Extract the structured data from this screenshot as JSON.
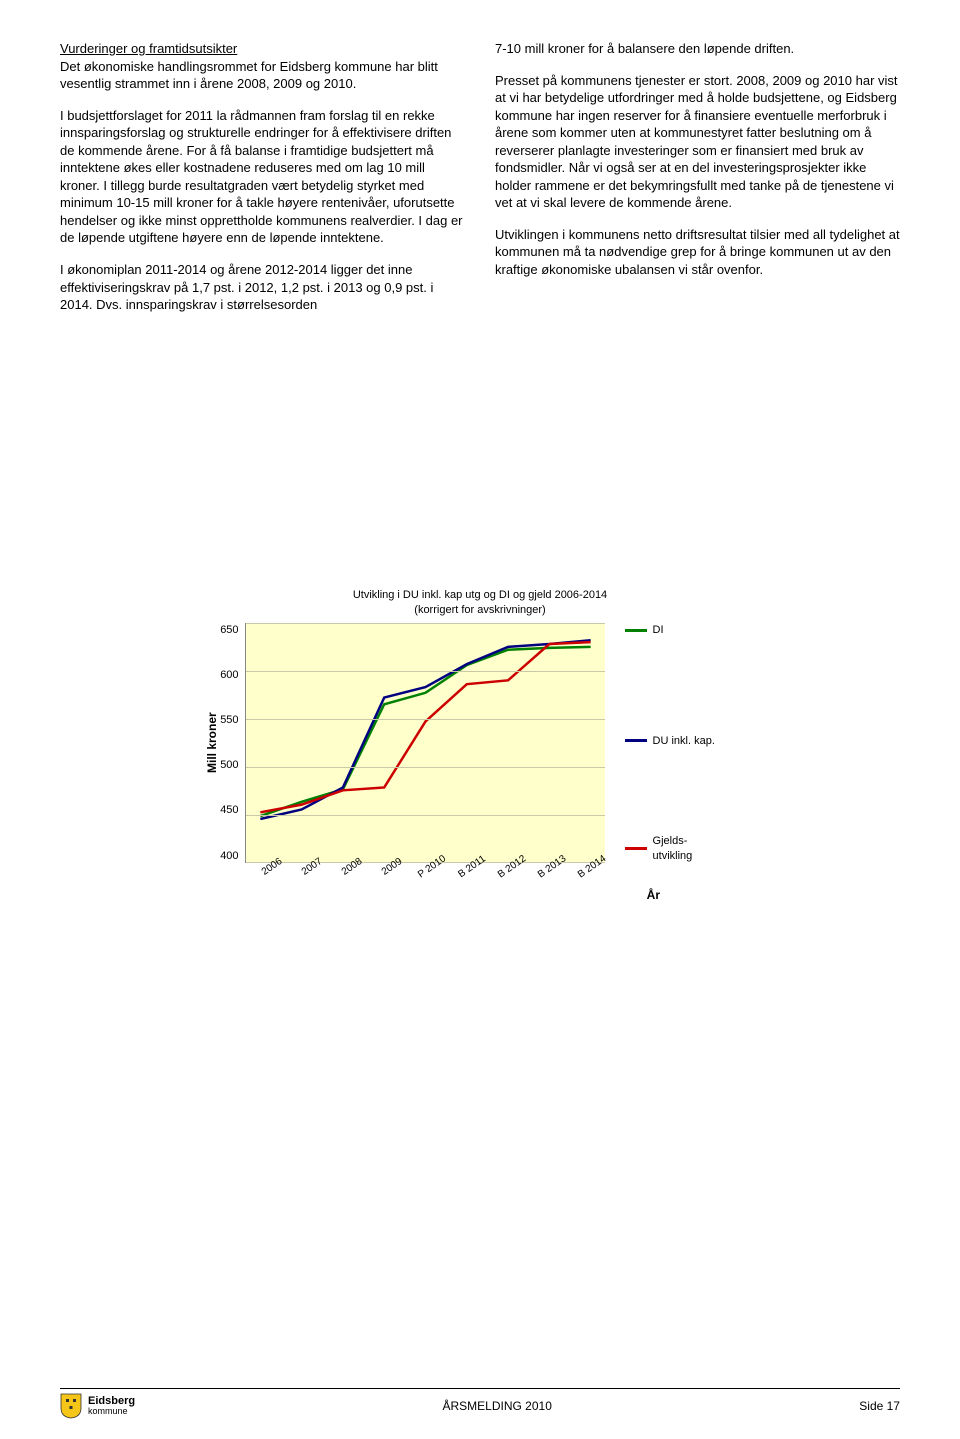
{
  "leftColumn": {
    "heading": "Vurderinger og framtidsutsikter",
    "p1": "Det økonomiske handlingsrommet for Eidsberg kommune har blitt vesentlig strammet inn i årene 2008, 2009 og 2010.",
    "p2": "I budsjettforslaget for 2011 la rådmannen fram forslag til en rekke innsparingsforslag og strukturelle endringer for å effektivisere driften de kommende årene. For å få balanse i framtidige budsjettert må inntektene økes eller kostnadene reduseres med om lag 10 mill kroner. I tillegg burde resultatgraden vært betydelig styrket med minimum 10-15 mill kroner for å takle høyere rentenivåer, uforutsette hendelser og ikke minst opprettholde kommunens realverdier. I dag er de løpende utgiftene høyere enn de løpende inntektene.",
    "p3": "I økonomiplan 2011-2014 og årene 2012-2014 ligger det inne effektiviseringskrav på 1,7 pst. i 2012, 1,2 pst. i 2013 og 0,9 pst. i 2014. Dvs. innsparingskrav i størrelsesorden"
  },
  "rightColumn": {
    "p1": "7-10 mill kroner for å balansere den løpende driften.",
    "p2": "Presset på kommunens tjenester er stort. 2008, 2009 og 2010 har vist at vi har betydelige utfordringer med å holde budsjettene, og Eidsberg kommune har ingen reserver for å finansiere eventuelle merforbruk i årene som kommer uten at kommunestyret fatter beslutning om å reverserer planlagte investeringer som er finansiert med bruk av fondsmidler. Når vi også ser at en del investeringsprosjekter ikke holder rammene er det bekymringsfullt med tanke på de tjenestene vi vet at vi skal levere de kommende årene.",
    "p3": "Utviklingen i kommunens netto driftsresultat tilsier med all tydelighet at kommunen må ta nødvendige grep for å bringe kommunen ut av den kraftige økonomiske ubalansen vi står ovenfor."
  },
  "chart": {
    "title_l1": "Utvikling i DU inkl. kap utg og DI og gjeld 2006-2014",
    "title_l2": "(korrigert for avskrivninger)",
    "ylabel": "Mill kroner",
    "xlabel": "År",
    "ymin": 400,
    "ymax": 650,
    "ytick_step": 50,
    "yticks": [
      "650",
      "600",
      "550",
      "500",
      "450",
      "400"
    ],
    "xticks": [
      "2006",
      "2007",
      "2008",
      "2009",
      "P 2010",
      "B 2011",
      "B 2012",
      "B 2013",
      "B 2014"
    ],
    "background": "#ffffcc",
    "grid_color": "#c9c9a8",
    "series": [
      {
        "name": "DI",
        "color": "#008000",
        "values": [
          448,
          463,
          476,
          565,
          577,
          606,
          622,
          624,
          625
        ]
      },
      {
        "name": "DU inkl. kap.",
        "color": "#000080",
        "values": [
          445,
          455,
          478,
          572,
          583,
          607,
          625,
          628,
          632
        ]
      },
      {
        "name": "Gjelds-utvikling",
        "color": "#cc0000",
        "values": [
          452,
          460,
          475,
          478,
          547,
          586,
          590,
          628,
          630
        ]
      }
    ],
    "legend": [
      {
        "label": "DI",
        "color": "#008000"
      },
      {
        "label": "DU inkl. kap.",
        "color": "#000080"
      },
      {
        "label": "Gjelds-utvikling",
        "color": "#cc0000"
      }
    ]
  },
  "footer": {
    "logo_t1": "Eidsberg",
    "logo_t2": "kommune",
    "center": "ÅRSMELDING 2010",
    "right": "Side 17"
  }
}
